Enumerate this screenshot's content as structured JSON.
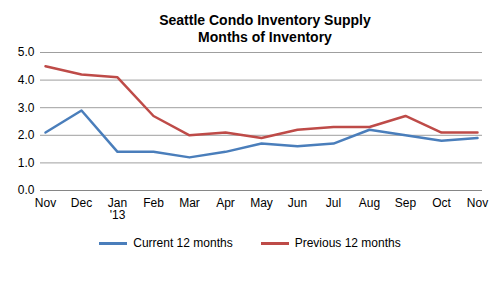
{
  "chart_data": {
    "type": "line",
    "title": "Seattle Condo Inventory Supply",
    "subtitle": "Months of Inventory",
    "categories": [
      "Nov",
      "Dec",
      "Jan\n'13",
      "Feb",
      "Mar",
      "Apr",
      "May",
      "Jun",
      "Jul",
      "Aug",
      "Sep",
      "Oct",
      "Nov"
    ],
    "series": [
      {
        "name": "Current 12 months",
        "color": "#4a7ebb",
        "values": [
          2.1,
          2.9,
          1.4,
          1.4,
          1.2,
          1.4,
          1.7,
          1.6,
          1.7,
          2.2,
          2.0,
          1.8,
          1.9
        ]
      },
      {
        "name": "Previous 12 months",
        "color": "#be4b48",
        "values": [
          4.5,
          4.2,
          4.1,
          2.7,
          2.0,
          2.1,
          1.9,
          2.2,
          2.3,
          2.3,
          2.7,
          2.1,
          2.1
        ]
      }
    ],
    "ylim": [
      0,
      5
    ],
    "yticks": [
      {
        "value": 0,
        "label": "0.0"
      },
      {
        "value": 1,
        "label": "1.0"
      },
      {
        "value": 2,
        "label": "2.0"
      },
      {
        "value": 3,
        "label": "3.0"
      },
      {
        "value": 4,
        "label": "4.0"
      },
      {
        "value": 5,
        "label": "5.0"
      }
    ],
    "grid": true,
    "legend": "bottom"
  }
}
